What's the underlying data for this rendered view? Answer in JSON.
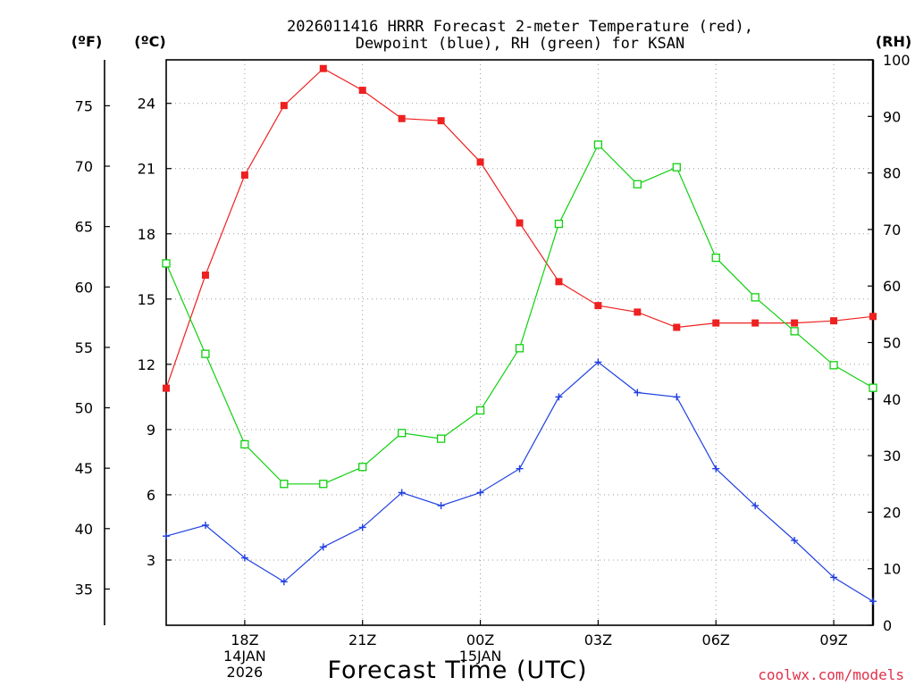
{
  "title_lines": [
    "2026011416 HRRR Forecast 2-meter Temperature (red),",
    "Dewpoint (blue), RH (green) for KSAN"
  ],
  "units": {
    "fahrenheit": "(ºF)",
    "celsius": "(ºC)",
    "rh": "(RH)"
  },
  "xlabel": "Forecast Time (UTC)",
  "credit": "coolwx.com/models",
  "colors": {
    "temperature": "#ee2020",
    "dewpoint": "#2040e0",
    "rh": "#10d010"
  },
  "chart_data": {
    "type": "line",
    "x_hours": [
      0,
      1,
      2,
      3,
      4,
      5,
      6,
      7,
      8,
      9,
      10,
      11,
      12,
      13,
      14,
      15,
      16,
      17,
      18
    ],
    "x_ticks": [
      {
        "hour": 2,
        "lines": [
          "18Z",
          "14JAN",
          "2026"
        ]
      },
      {
        "hour": 5,
        "lines": [
          "21Z"
        ]
      },
      {
        "hour": 8,
        "lines": [
          "00Z",
          "15JAN"
        ]
      },
      {
        "hour": 11,
        "lines": [
          "03Z"
        ]
      },
      {
        "hour": 14,
        "lines": [
          "06Z"
        ]
      },
      {
        "hour": 17,
        "lines": [
          "09Z"
        ]
      }
    ],
    "xlim": [
      0,
      18
    ],
    "celsius_axis": {
      "range": [
        0,
        26
      ],
      "ticks": [
        "3",
        "6",
        "9",
        "12",
        "15",
        "18",
        "21",
        "24"
      ]
    },
    "fahrenheit_axis": {
      "ticks": [
        "35",
        "40",
        "45",
        "50",
        "55",
        "60",
        "65",
        "70",
        "75"
      ]
    },
    "rh_axis": {
      "range": [
        0,
        100
      ],
      "ticks": [
        "0",
        "10",
        "20",
        "30",
        "40",
        "50",
        "60",
        "70",
        "80",
        "90",
        "100"
      ]
    },
    "series": [
      {
        "name": "Temperature",
        "axis": "celsius",
        "marker": "square-filled",
        "values": [
          10.9,
          16.1,
          20.7,
          23.9,
          25.6,
          24.6,
          23.3,
          23.2,
          21.3,
          18.5,
          15.8,
          14.7,
          14.4,
          13.7,
          13.9,
          13.9,
          13.9,
          14.0,
          14.2
        ]
      },
      {
        "name": "Dewpoint",
        "axis": "celsius",
        "marker": "plus",
        "values": [
          4.1,
          4.6,
          3.1,
          2.0,
          3.6,
          4.5,
          6.1,
          5.5,
          6.1,
          7.2,
          10.5,
          12.1,
          10.7,
          10.5,
          7.2,
          5.5,
          3.9,
          2.2,
          1.1
        ]
      },
      {
        "name": "RH",
        "axis": "rh",
        "marker": "square-open",
        "values": [
          64,
          48,
          32,
          25,
          25,
          28,
          34,
          33,
          38,
          49,
          71,
          85,
          78,
          81,
          65,
          58,
          52,
          46,
          42
        ]
      }
    ]
  }
}
